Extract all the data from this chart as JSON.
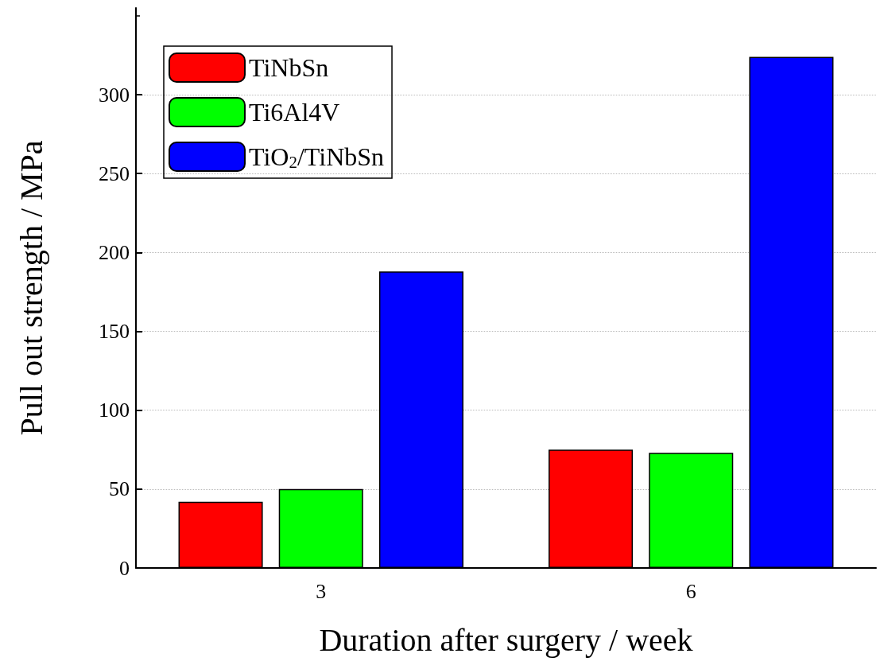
{
  "chart_data": {
    "type": "bar",
    "xlabel": "Duration after surgery / week",
    "ylabel": "Pull out strength / MPa",
    "categories": [
      "3",
      "6"
    ],
    "series": [
      {
        "name": "TiNbSn",
        "color": "#ff0000",
        "values": [
          42,
          75
        ]
      },
      {
        "name": "Ti6Al4V",
        "color": "#00ff00",
        "values": [
          50,
          73
        ]
      },
      {
        "name": "TiO$_{2}$/TiNbSn",
        "color": "#0000ff",
        "values": [
          188,
          324
        ]
      }
    ],
    "ylim": [
      0,
      355
    ],
    "yticks": [
      0,
      50,
      100,
      150,
      200,
      250,
      300
    ],
    "grid": "y",
    "legend": "top left"
  }
}
